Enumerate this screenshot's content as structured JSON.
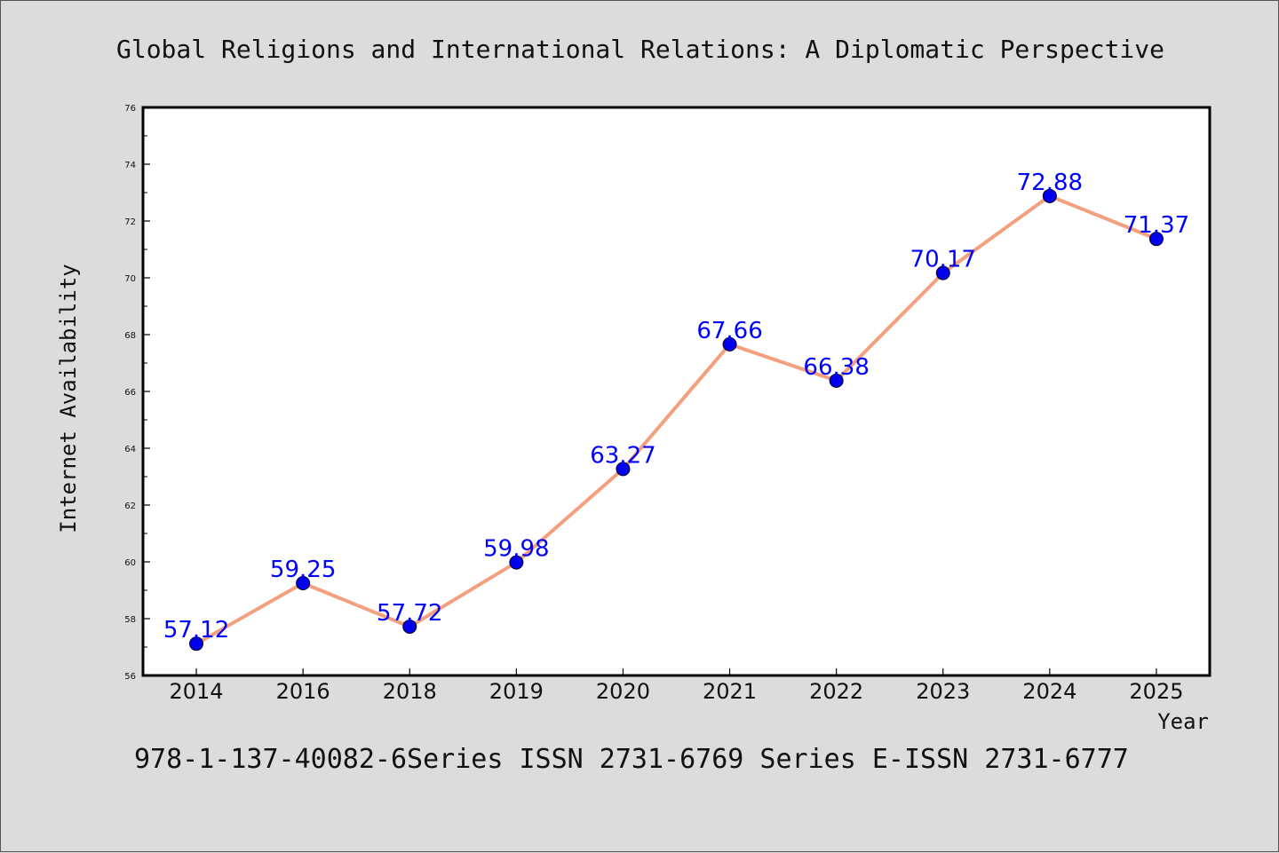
{
  "chart_data": {
    "type": "line",
    "title": "Global Religions and International Relations: A Diplomatic Perspective",
    "xlabel": "Year",
    "ylabel": "Internet Availability",
    "categories": [
      "2014",
      "2016",
      "2018",
      "2019",
      "2020",
      "2021",
      "2022",
      "2023",
      "2024",
      "2025"
    ],
    "series": [
      {
        "values": [
          57.12,
          59.25,
          57.72,
          59.98,
          63.27,
          67.66,
          66.38,
          70.17,
          72.88,
          71.37
        ]
      }
    ],
    "data_labels": [
      "57.12",
      "59.25",
      "57.72",
      "59.98",
      "63.27",
      "67.66",
      "66.38",
      "70.17",
      "72.88",
      "71.37"
    ],
    "ylim": [
      56,
      76
    ],
    "y_ticks": [
      "56",
      "58",
      "60",
      "62",
      "64",
      "66",
      "68",
      "70",
      "72",
      "74",
      "76"
    ],
    "grid": false,
    "legend": "none",
    "footer": "978-1-137-40082-6Series ISSN 2731-6769 Series E-ISSN 2731-6777",
    "colors": {
      "line": "#f4a07e",
      "marker": "#0000ee",
      "label": "#0000ff",
      "background": "#dcdcdc",
      "plot_background": "#ffffff"
    }
  }
}
